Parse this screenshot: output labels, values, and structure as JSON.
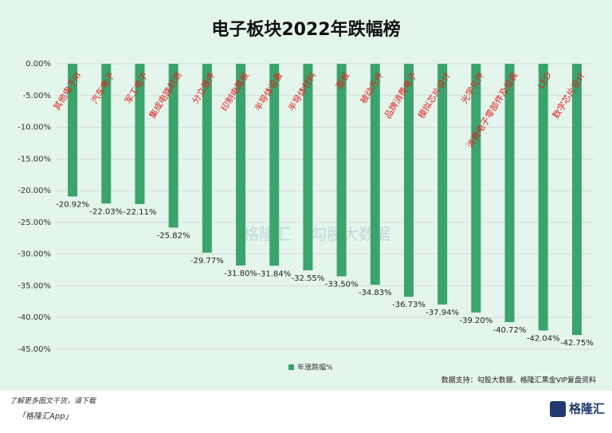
{
  "chart_data": {
    "type": "bar",
    "title": "电子板块2022年跌幅榜",
    "categories": [
      "其他电子III",
      "汽车电子",
      "军工电子",
      "集成电路封测",
      "分立器件",
      "印制电路板",
      "半导体设备",
      "半导体材料",
      "面板",
      "被动元件",
      "品牌消费电子",
      "模拟芯片设计",
      "光学元件",
      "消费电子零部件及组装",
      "LED",
      "数字芯片设计"
    ],
    "series": [
      {
        "name": "年涨跌幅%",
        "color": "#3aa46c",
        "values": [
          -20.92,
          -22.03,
          -22.11,
          -25.82,
          -29.77,
          -31.8,
          -31.84,
          -32.55,
          -33.5,
          -34.83,
          -36.73,
          -37.94,
          -39.2,
          -40.72,
          -42.04,
          -42.75
        ],
        "value_labels": [
          "-20.92%",
          "-22.03%",
          "-22.11%",
          "-25.82%",
          "-29.77%",
          "-31.80%",
          "-31.84%",
          "-32.55%",
          "-33.50%",
          "-34.83%",
          "-36.73%",
          "-37.94%",
          "-39.20%",
          "-40.72%",
          "-42.04%",
          "-42.75%"
        ]
      }
    ],
    "ylim": [
      -45,
      0
    ],
    "yticks": [
      {
        "value": 0,
        "label": "0.00%"
      },
      {
        "value": -5,
        "label": "-5.00%"
      },
      {
        "value": -10,
        "label": "-10.00%"
      },
      {
        "value": -15,
        "label": "-15.00%"
      },
      {
        "value": -20,
        "label": "-20.00%"
      },
      {
        "value": -25,
        "label": "-25.00%"
      },
      {
        "value": -30,
        "label": "-30.00%"
      },
      {
        "value": -35,
        "label": "-35.00%"
      },
      {
        "value": -40,
        "label": "-40.00%"
      },
      {
        "value": -45,
        "label": "-45.00%"
      }
    ],
    "category_label_color": "#e02020",
    "legend": "bottom",
    "source": "数据支持：勾股大数据、格隆汇黑金VIP复盘资料",
    "watermarks": [
      "格隆汇",
      "勾股大数据"
    ],
    "footer": {
      "line1": "了解更多图文干货，请下载",
      "line2": "「格隆汇App」",
      "logo": "格隆汇"
    }
  }
}
